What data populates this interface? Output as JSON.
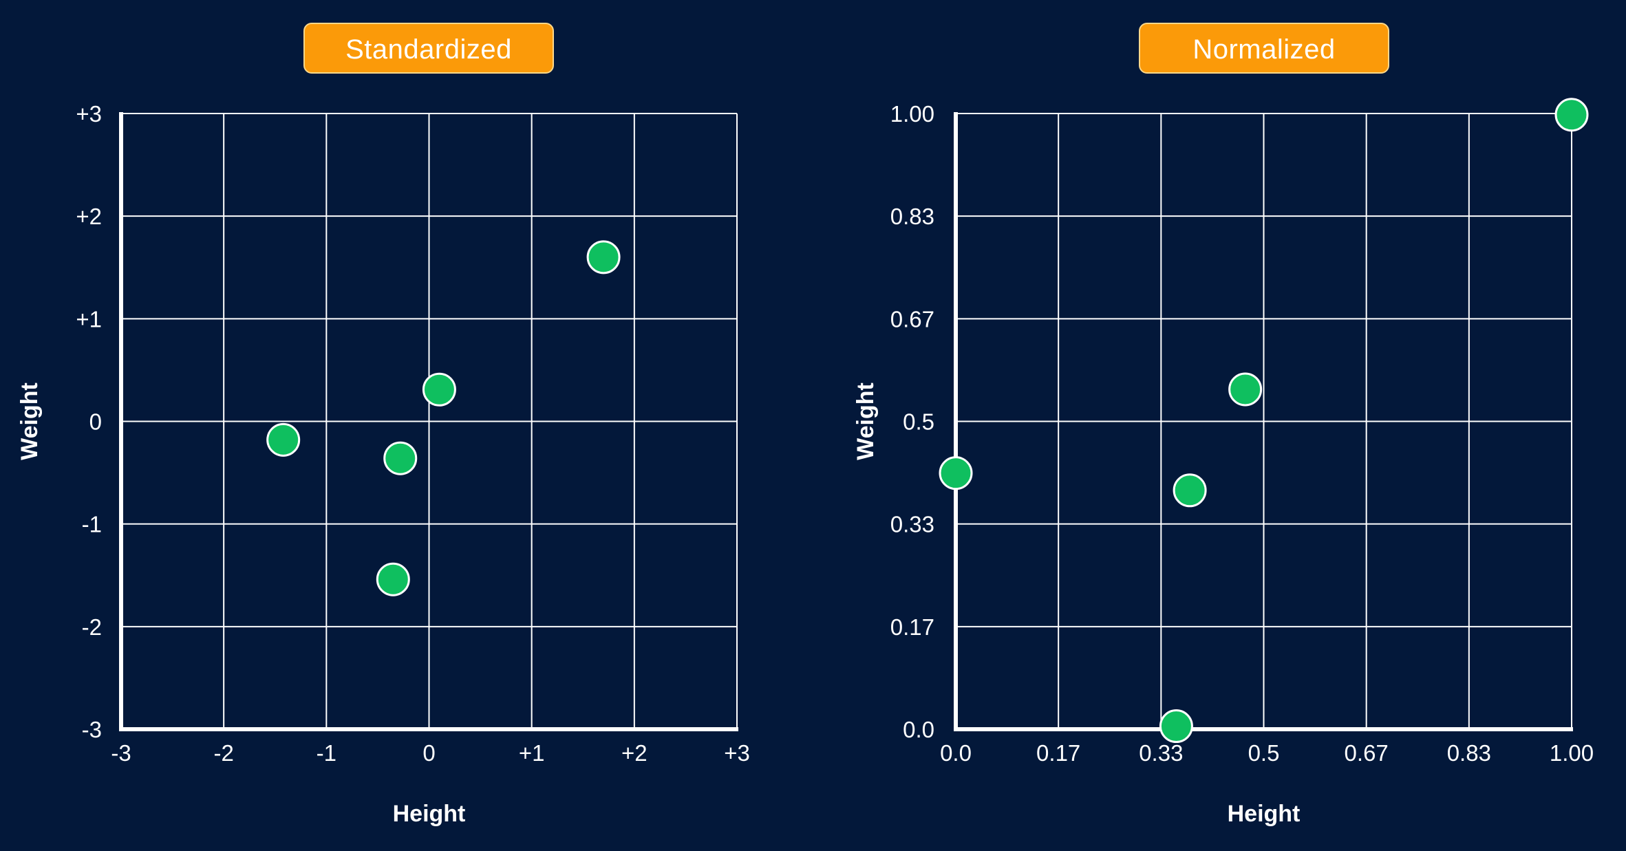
{
  "colors": {
    "background": "#03183a",
    "grid": "#ffffff",
    "point": "#0fbf5f",
    "point_stroke": "#ffffff",
    "title_pill": "#fb9a09"
  },
  "chart_data": [
    {
      "type": "scatter",
      "title": "Standardized",
      "xlabel": "Height",
      "ylabel": "Weight",
      "xlim": [
        -3,
        3
      ],
      "ylim": [
        -3,
        3
      ],
      "x_ticks": [
        "-3",
        "-2",
        "-1",
        "0",
        "+1",
        "+2",
        "+3"
      ],
      "y_ticks": [
        "-3",
        "-2",
        "-1",
        "0",
        "+1",
        "+2",
        "+3"
      ],
      "grid": true,
      "points": [
        {
          "x": -1.42,
          "y": -0.18
        },
        {
          "x": -0.28,
          "y": -0.36
        },
        {
          "x": 0.1,
          "y": 0.31
        },
        {
          "x": -0.35,
          "y": -1.54
        },
        {
          "x": 1.7,
          "y": 1.6
        }
      ]
    },
    {
      "type": "scatter",
      "title": "Normalized",
      "xlabel": "Height",
      "ylabel": "Weight",
      "xlim": [
        0,
        1
      ],
      "ylim": [
        0,
        1
      ],
      "x_ticks": [
        "0.0",
        "0.17",
        "0.33",
        "0.5",
        "0.67",
        "0.83",
        "1.00"
      ],
      "y_ticks": [
        "0.0",
        "0.17",
        "0.33",
        "0.5",
        "0.67",
        "0.83",
        "1.00"
      ],
      "grid": true,
      "points": [
        {
          "x": 0.0,
          "y": 0.416
        },
        {
          "x": 0.358,
          "y": 0.005
        },
        {
          "x": 0.38,
          "y": 0.388
        },
        {
          "x": 0.47,
          "y": 0.552
        },
        {
          "x": 1.0,
          "y": 0.998
        }
      ]
    }
  ]
}
